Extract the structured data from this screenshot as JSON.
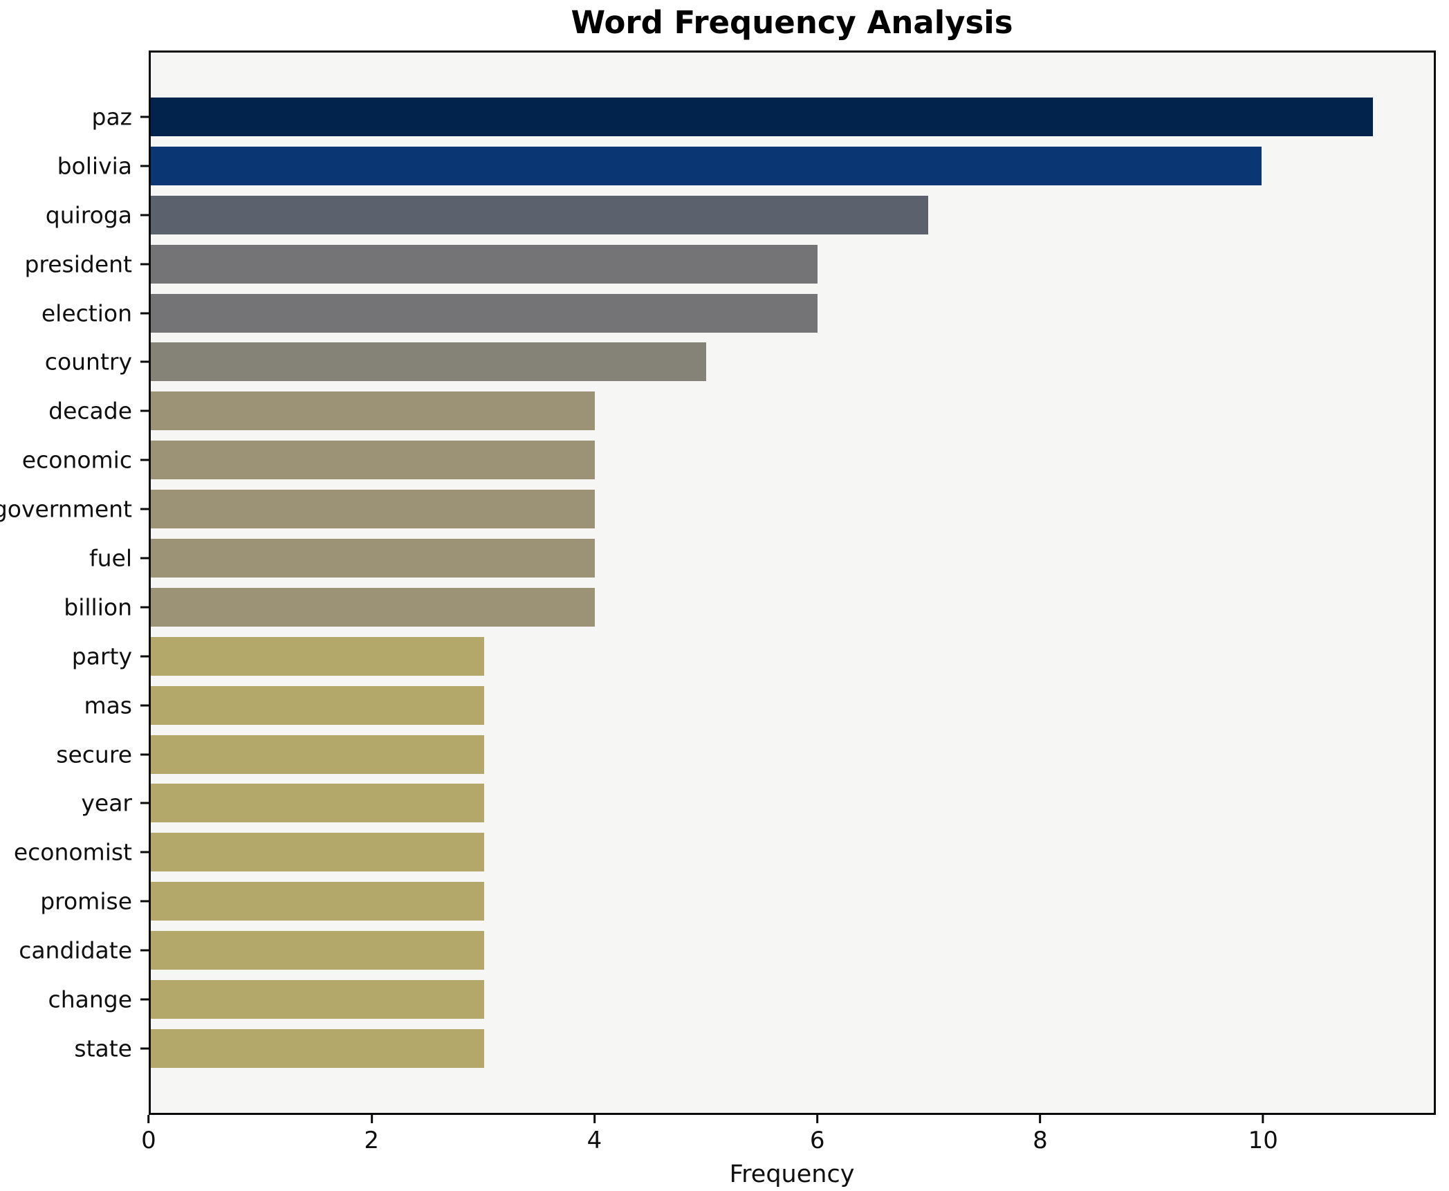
{
  "chart_data": {
    "type": "bar",
    "orientation": "horizontal",
    "title": "Word Frequency Analysis",
    "xlabel": "Frequency",
    "ylabel": "",
    "xlim": [
      0,
      11.55
    ],
    "xticks": [
      0,
      2,
      4,
      6,
      8,
      10
    ],
    "grid": false,
    "legend": false,
    "categories": [
      "paz",
      "bolivia",
      "quiroga",
      "president",
      "election",
      "country",
      "decade",
      "economic",
      "government",
      "fuel",
      "billion",
      "party",
      "mas",
      "secure",
      "year",
      "economist",
      "promise",
      "candidate",
      "change",
      "state"
    ],
    "values": [
      11,
      10,
      7,
      6,
      6,
      5,
      4,
      4,
      4,
      4,
      4,
      3,
      3,
      3,
      3,
      3,
      3,
      3,
      3,
      3
    ],
    "bar_colors": [
      "#02234c",
      "#0a3674",
      "#5c616e",
      "#747477",
      "#747477",
      "#858378",
      "#9c9376",
      "#9c9376",
      "#9c9376",
      "#9c9376",
      "#9c9376",
      "#b3a76a",
      "#b3a76a",
      "#b3a76a",
      "#b3a76a",
      "#b3a76a",
      "#b3a76a",
      "#b3a76a",
      "#b3a76a",
      "#b3a76a"
    ],
    "plot_background": "#f6f6f4",
    "figure_background": "#ffffff",
    "spine_color": "#0a0a0a",
    "text_color": "#0f0f0f"
  }
}
